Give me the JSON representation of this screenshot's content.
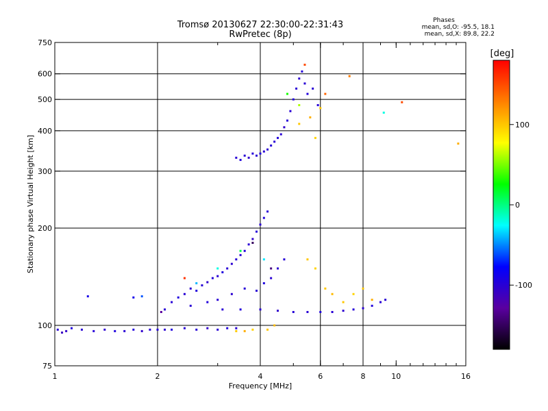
{
  "chart_data": {
    "type": "scatter",
    "title": "Tromsø 20130627 22:30:00-22:31:43",
    "subtitle": "RwPretec (8p)",
    "xlabel": "Frequency [MHz]",
    "ylabel": "Stationary phase Virtual Height [km]",
    "x_scale": "log",
    "y_scale": "log",
    "xlim": [
      1,
      16
    ],
    "ylim": [
      75,
      750
    ],
    "x_ticks": [
      1,
      2,
      4,
      6,
      8,
      10,
      16
    ],
    "x_tick_labels": [
      "1",
      "2",
      "4",
      "6",
      "8",
      "10",
      "16"
    ],
    "x_gridlines": [
      2,
      4,
      6,
      8
    ],
    "y_ticks": [
      75,
      100,
      200,
      300,
      400,
      500,
      600,
      750
    ],
    "y_tick_labels": [
      "75",
      "100",
      "200",
      "300",
      "400",
      "500",
      "600",
      "750"
    ],
    "y_gridlines": [
      100,
      200,
      300,
      400,
      500,
      600
    ],
    "grid": true,
    "legend_title": "Phases",
    "legend_lines": [
      "mean, sd,O:  -95.5, 18.1",
      "mean, sd,X:   89.8, 22.2"
    ],
    "legend_position": "top-right",
    "colorbar": {
      "title": "[deg]",
      "range": [
        -180,
        180
      ],
      "ticks": [
        100,
        0,
        -100
      ],
      "tick_labels": [
        "100",
        "0",
        "-100"
      ],
      "colors": [
        "#000000",
        "#5a00a0",
        "#0000ff",
        "#00ffff",
        "#00ff00",
        "#ffff00",
        "#ff8000",
        "#ff0000"
      ]
    },
    "series": [
      {
        "values": [
          [
            1.02,
            97,
            -100
          ],
          [
            1.05,
            95,
            -110
          ],
          [
            1.08,
            96,
            -105
          ],
          [
            1.12,
            98,
            -95
          ],
          [
            1.2,
            97,
            -100
          ],
          [
            1.3,
            96,
            -98
          ],
          [
            1.4,
            97,
            -102
          ],
          [
            1.5,
            96,
            -95
          ],
          [
            1.6,
            96,
            -100
          ],
          [
            1.7,
            97,
            -96
          ],
          [
            1.8,
            96,
            -104
          ],
          [
            1.9,
            97,
            -100
          ],
          [
            2.0,
            97,
            -98
          ],
          [
            2.1,
            97,
            -102
          ],
          [
            2.2,
            97,
            -95
          ],
          [
            2.4,
            98,
            -100
          ],
          [
            2.6,
            97,
            -98
          ],
          [
            2.8,
            98,
            -105
          ],
          [
            3.0,
            97,
            -100
          ],
          [
            3.2,
            98,
            -96
          ],
          [
            3.4,
            98,
            -100
          ],
          [
            1.25,
            123,
            -90
          ],
          [
            1.7,
            122,
            -88
          ],
          [
            2.1,
            112,
            -100
          ],
          [
            2.2,
            118,
            -98
          ],
          [
            2.3,
            122,
            -95
          ],
          [
            2.4,
            125,
            -100
          ],
          [
            2.5,
            130,
            -102
          ],
          [
            2.6,
            128,
            -96
          ],
          [
            2.7,
            133,
            -100
          ],
          [
            2.8,
            136,
            -104
          ],
          [
            2.9,
            140,
            -98
          ],
          [
            3.0,
            142,
            -100
          ],
          [
            3.1,
            146,
            -95
          ],
          [
            3.2,
            150,
            -100
          ],
          [
            3.3,
            155,
            -102
          ],
          [
            3.4,
            160,
            -98
          ],
          [
            3.5,
            165,
            -100
          ],
          [
            3.6,
            170,
            -96
          ],
          [
            3.7,
            178,
            -100
          ],
          [
            3.8,
            185,
            -104
          ],
          [
            3.9,
            195,
            -98
          ],
          [
            4.0,
            205,
            -100
          ],
          [
            4.1,
            215,
            -95
          ],
          [
            4.2,
            225,
            -100
          ],
          [
            2.5,
            115,
            -100
          ],
          [
            2.8,
            118,
            -96
          ],
          [
            3.0,
            120,
            -100
          ],
          [
            3.3,
            125,
            -102
          ],
          [
            3.6,
            130,
            -98
          ],
          [
            3.9,
            128,
            -100
          ],
          [
            4.1,
            135,
            -95
          ],
          [
            4.3,
            140,
            -100
          ],
          [
            4.5,
            150,
            -102
          ],
          [
            4.7,
            160,
            -98
          ],
          [
            3.1,
            112,
            -100
          ],
          [
            3.5,
            112,
            -96
          ],
          [
            4.0,
            112,
            -100
          ],
          [
            4.5,
            111,
            -104
          ],
          [
            5.0,
            110,
            -98
          ],
          [
            5.5,
            110,
            -100
          ],
          [
            6.0,
            110,
            -95
          ],
          [
            6.5,
            110,
            -100
          ],
          [
            7.0,
            111,
            -102
          ],
          [
            7.5,
            112,
            -98
          ],
          [
            8.0,
            113,
            -100
          ],
          [
            8.5,
            115,
            -96
          ],
          [
            9.0,
            118,
            -100
          ],
          [
            9.3,
            120,
            -100
          ],
          [
            3.4,
            330,
            -100
          ],
          [
            3.5,
            325,
            -96
          ],
          [
            3.6,
            335,
            -100
          ],
          [
            3.7,
            330,
            -104
          ],
          [
            3.8,
            340,
            -98
          ],
          [
            3.9,
            335,
            -100
          ],
          [
            4.0,
            340,
            -95
          ],
          [
            4.1,
            345,
            -100
          ],
          [
            4.2,
            350,
            -102
          ],
          [
            4.3,
            360,
            -98
          ],
          [
            4.4,
            370,
            -100
          ],
          [
            4.5,
            380,
            -96
          ],
          [
            4.6,
            390,
            -100
          ],
          [
            4.7,
            410,
            -104
          ],
          [
            4.8,
            430,
            -98
          ],
          [
            4.9,
            460,
            -100
          ],
          [
            5.0,
            500,
            -95
          ],
          [
            5.1,
            540,
            -100
          ],
          [
            5.2,
            580,
            -102
          ],
          [
            5.3,
            610,
            -98
          ],
          [
            5.4,
            560,
            -100
          ],
          [
            5.5,
            520,
            -96
          ],
          [
            5.7,
            540,
            -100
          ],
          [
            5.9,
            480,
            -100
          ],
          [
            3.4,
            96,
            100
          ],
          [
            3.6,
            96,
            110
          ],
          [
            3.8,
            97,
            95
          ],
          [
            4.2,
            97,
            100
          ],
          [
            4.4,
            100,
            105
          ],
          [
            5.2,
            420,
            100
          ],
          [
            5.6,
            440,
            110
          ],
          [
            5.8,
            380,
            95
          ],
          [
            6.0,
            470,
            100
          ],
          [
            6.2,
            130,
            100
          ],
          [
            6.5,
            125,
            105
          ],
          [
            7.0,
            118,
            100
          ],
          [
            7.5,
            125,
            95
          ],
          [
            8.0,
            130,
            100
          ],
          [
            8.5,
            120,
            110
          ],
          [
            5.5,
            160,
            100
          ],
          [
            5.8,
            150,
            95
          ],
          [
            4.8,
            520,
            30
          ],
          [
            5.2,
            480,
            60
          ],
          [
            6.2,
            520,
            140
          ],
          [
            5.4,
            640,
            150
          ],
          [
            7.3,
            590,
            130
          ],
          [
            9.2,
            455,
            -20
          ],
          [
            10.4,
            490,
            150
          ],
          [
            15.2,
            365,
            110
          ],
          [
            3.0,
            150,
            -20
          ],
          [
            3.5,
            170,
            10
          ],
          [
            4.1,
            160,
            -30
          ],
          [
            2.6,
            135,
            -40
          ],
          [
            2.4,
            140,
            160
          ],
          [
            3.8,
            180,
            -150
          ],
          [
            4.3,
            150,
            -140
          ],
          [
            1.8,
            123,
            -60
          ],
          [
            2.05,
            110,
            -130
          ]
        ]
      }
    ]
  }
}
